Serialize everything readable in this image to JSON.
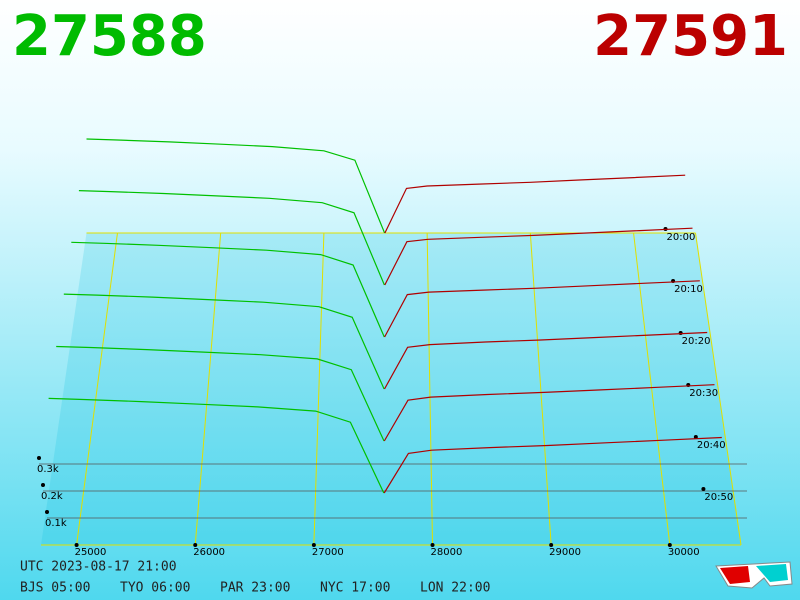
{
  "chart_data": {
    "type": "depth3d",
    "bid": 27588,
    "ask": 27591,
    "bid_color": "#00c000",
    "ask_color": "#b00000",
    "xlim": [
      24700,
      30600
    ],
    "xticks": [
      25000,
      26000,
      27000,
      28000,
      29000,
      30000
    ],
    "zlim": [
      0,
      400
    ],
    "zticks": [
      {
        "value": 100,
        "label": "0.1k"
      },
      {
        "value": 200,
        "label": "0.2k"
      },
      {
        "value": 300,
        "label": "0.3k"
      }
    ],
    "bid_prices": [
      24700,
      25000,
      25500,
      26000,
      26500,
      27000,
      27300,
      27588
    ],
    "ask_prices": [
      27591,
      27800,
      28000,
      28500,
      29000,
      29500,
      30000,
      30500
    ],
    "snapshots": [
      {
        "time": "20:00",
        "bid": [
          400,
          396,
          388,
          378,
          368,
          350,
          310,
          0
        ],
        "ask": [
          0,
          190,
          200,
          208,
          216,
          226,
          236,
          246
        ]
      },
      {
        "time": "20:10",
        "bid": [
          392,
          388,
          380,
          370,
          360,
          342,
          300,
          0
        ],
        "ask": [
          0,
          180,
          190,
          198,
          206,
          216,
          226,
          236
        ]
      },
      {
        "time": "20:20",
        "bid": [
          384,
          380,
          372,
          362,
          352,
          334,
          292,
          0
        ],
        "ask": [
          0,
          172,
          182,
          190,
          198,
          208,
          218,
          228
        ]
      },
      {
        "time": "20:30",
        "bid": [
          376,
          372,
          364,
          354,
          344,
          326,
          284,
          0
        ],
        "ask": [
          0,
          165,
          176,
          186,
          194,
          204,
          214,
          224
        ]
      },
      {
        "time": "20:40",
        "bid": [
          366,
          362,
          354,
          344,
          334,
          318,
          276,
          0
        ],
        "ask": [
          0,
          158,
          170,
          180,
          188,
          198,
          208,
          218
        ]
      },
      {
        "time": "20:50",
        "bid": [
          358,
          354,
          346,
          336,
          326,
          310,
          268,
          0
        ],
        "ask": [
          0,
          150,
          162,
          172,
          180,
          190,
          200,
          210
        ]
      }
    ]
  },
  "footer": {
    "utc": "UTC 2023-08-17 21:00",
    "zones": [
      "BJS 05:00",
      "TYO 06:00",
      "PAR 23:00",
      "NYC 17:00",
      "LON 22:00"
    ]
  }
}
